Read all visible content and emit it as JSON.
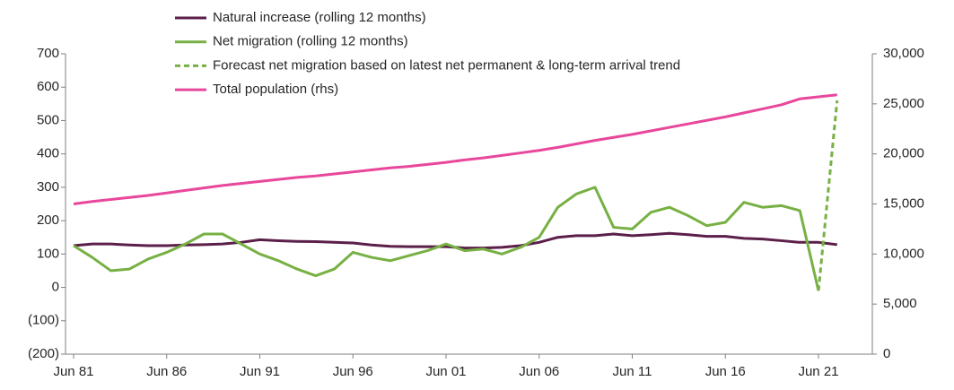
{
  "chart_data": {
    "type": "line",
    "categories": [
      "Jun 81",
      null,
      null,
      null,
      null,
      "Jun 86",
      null,
      null,
      null,
      null,
      "Jun 91",
      null,
      null,
      null,
      null,
      "Jun 96",
      null,
      null,
      null,
      null,
      "Jun 01",
      null,
      null,
      null,
      null,
      "Jun 06",
      null,
      null,
      null,
      null,
      "Jun 11",
      null,
      null,
      null,
      null,
      "Jun 16",
      null,
      null,
      null,
      null,
      "Jun 21",
      null
    ],
    "series": [
      {
        "name": "Natural increase (rolling 12 months)",
        "color": "#5b1f4a",
        "style": "solid",
        "values": [
          125,
          130,
          130,
          127,
          125,
          125,
          127,
          128,
          130,
          135,
          143,
          140,
          138,
          137,
          135,
          133,
          127,
          123,
          122,
          122,
          122,
          118,
          118,
          120,
          125,
          135,
          150,
          155,
          155,
          160,
          155,
          158,
          162,
          158,
          153,
          153,
          147,
          145,
          140,
          135,
          135,
          128
        ]
      },
      {
        "name": "Net migration (rolling 12 months)",
        "color": "#77b043",
        "style": "solid",
        "values": [
          125,
          90,
          50,
          55,
          85,
          105,
          130,
          160,
          160,
          130,
          100,
          80,
          55,
          35,
          55,
          105,
          90,
          80,
          95,
          110,
          130,
          110,
          115,
          100,
          120,
          150,
          240,
          280,
          300,
          180,
          175,
          225,
          240,
          215,
          185,
          195,
          255,
          240,
          245,
          230,
          -10,
          null
        ]
      },
      {
        "name": "Forecast net migration based on latest net permanent & long-term arrival trend",
        "color": "#77b043",
        "style": "dashed",
        "values": [
          null,
          null,
          null,
          null,
          null,
          null,
          null,
          null,
          null,
          null,
          null,
          null,
          null,
          null,
          null,
          null,
          null,
          null,
          null,
          null,
          null,
          null,
          null,
          null,
          null,
          null,
          null,
          null,
          null,
          null,
          null,
          null,
          null,
          null,
          null,
          null,
          null,
          null,
          null,
          null,
          -10,
          560
        ]
      },
      {
        "name": "Total population (rhs)",
        "color": "#e8479b",
        "style": "solid",
        "axis": "y2",
        "values": [
          15000,
          15250,
          15450,
          15650,
          15850,
          16100,
          16350,
          16600,
          16850,
          17050,
          17250,
          17450,
          17650,
          17800,
          18000,
          18200,
          18400,
          18600,
          18750,
          18950,
          19150,
          19400,
          19600,
          19850,
          20100,
          20350,
          20650,
          21000,
          21350,
          21650,
          21950,
          22300,
          22650,
          23000,
          23350,
          23700,
          24100,
          24500,
          24900,
          25500,
          25700,
          25900
        ]
      }
    ],
    "ylim": [
      -200,
      700
    ],
    "yticks": [
      {
        "value": -200,
        "label": "(200)"
      },
      {
        "value": -100,
        "label": "(100)"
      },
      0,
      100,
      200,
      300,
      400,
      500,
      600,
      700
    ],
    "y2lim": [
      0,
      30000
    ],
    "y2ticks": [
      0,
      {
        "value": 5000,
        "label": "5,000"
      },
      {
        "value": 10000,
        "label": "10,000"
      },
      {
        "value": 15000,
        "label": "15,000"
      },
      {
        "value": 20000,
        "label": "20,000"
      },
      {
        "value": 25000,
        "label": "25,000"
      },
      {
        "value": 30000,
        "label": "30,000"
      }
    ],
    "grid": false,
    "legend": "top"
  }
}
